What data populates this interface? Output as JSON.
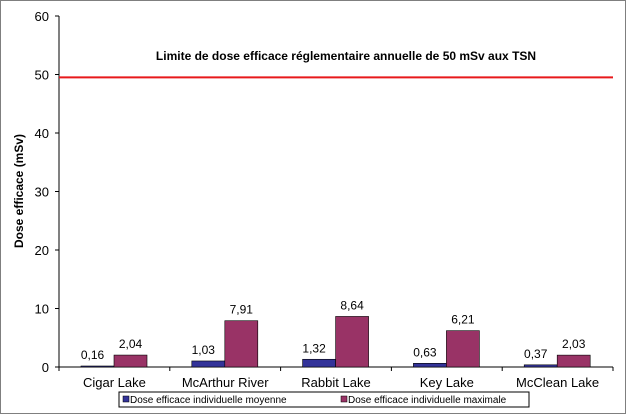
{
  "chart_data": {
    "type": "bar",
    "ylabel": "Dose efficace (mSv)",
    "xlabel": "",
    "ylim": [
      0,
      60
    ],
    "yticks": [
      0,
      10,
      20,
      30,
      40,
      50,
      60
    ],
    "categories": [
      "Cigar Lake",
      "McArthur River",
      "Rabbit Lake",
      "Key Lake",
      "McClean Lake"
    ],
    "series": [
      {
        "name": "Dose efficace individuelle moyenne",
        "color": "#333399",
        "values": [
          0.16,
          1.03,
          1.32,
          0.63,
          0.37
        ],
        "labels": [
          "0,16",
          "1,03",
          "1,32",
          "0,63",
          "0,37"
        ]
      },
      {
        "name": "Dose efficace individuelle maximale",
        "color": "#993366",
        "values": [
          2.04,
          7.91,
          8.64,
          6.21,
          2.03
        ],
        "labels": [
          "2,04",
          "7,91",
          "8,64",
          "6,21",
          "2,03"
        ]
      }
    ],
    "reference_line": {
      "value": 49.5,
      "color": "#e8191b",
      "label": "Limite de dose efficace réglementaire annuelle de 50 mSv aux TSN"
    },
    "grid": false,
    "legend_position": "bottom"
  }
}
